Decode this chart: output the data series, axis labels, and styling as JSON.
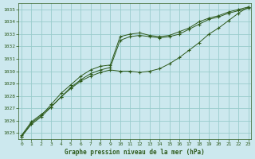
{
  "title": "Graphe pression niveau de la mer (hPa)",
  "bg_color": "#cce8ee",
  "grid_color": "#99cccc",
  "line_color": "#2d5a1b",
  "xlim": [
    -0.3,
    23.3
  ],
  "ylim": [
    1024.5,
    1035.5
  ],
  "yticks": [
    1025,
    1026,
    1027,
    1028,
    1029,
    1030,
    1031,
    1032,
    1033,
    1034,
    1035
  ],
  "xticks": [
    0,
    1,
    2,
    3,
    4,
    5,
    6,
    7,
    8,
    9,
    10,
    11,
    12,
    13,
    14,
    15,
    16,
    17,
    18,
    19,
    20,
    21,
    22,
    23
  ],
  "series1_x": [
    0,
    1,
    2,
    3,
    4,
    5,
    6,
    7,
    8,
    9,
    10,
    11,
    12,
    13,
    14,
    15,
    16,
    17,
    18,
    19,
    20,
    21,
    22,
    23
  ],
  "series1_y": [
    1024.8,
    1025.9,
    1026.5,
    1027.1,
    1027.9,
    1028.6,
    1029.2,
    1029.6,
    1029.9,
    1030.1,
    1030.0,
    1030.0,
    1029.9,
    1030.0,
    1030.2,
    1030.6,
    1031.1,
    1031.7,
    1032.3,
    1033.0,
    1033.5,
    1034.1,
    1034.7,
    1035.2
  ],
  "series2_x": [
    0,
    1,
    2,
    3,
    4,
    5,
    6,
    7,
    8,
    9,
    10,
    11,
    12,
    13,
    14,
    15,
    16,
    17,
    18,
    19,
    20,
    21,
    22,
    23
  ],
  "series2_y": [
    1024.7,
    1025.8,
    1026.4,
    1027.3,
    1028.2,
    1028.9,
    1029.6,
    1030.1,
    1030.4,
    1030.5,
    1032.8,
    1033.0,
    1033.1,
    1032.9,
    1032.8,
    1032.9,
    1033.2,
    1033.5,
    1034.0,
    1034.3,
    1034.5,
    1034.8,
    1035.0,
    1035.2
  ],
  "series3_x": [
    0,
    1,
    2,
    3,
    4,
    5,
    6,
    7,
    8,
    9,
    10,
    11,
    12,
    13,
    14,
    15,
    16,
    17,
    18,
    19,
    20,
    21,
    22,
    23
  ],
  "series3_y": [
    1024.7,
    1025.7,
    1026.3,
    1027.1,
    1027.9,
    1028.7,
    1029.3,
    1029.8,
    1030.1,
    1030.3,
    1032.5,
    1032.8,
    1032.9,
    1032.8,
    1032.7,
    1032.8,
    1033.0,
    1033.4,
    1033.8,
    1034.2,
    1034.4,
    1034.7,
    1034.9,
    1035.1
  ]
}
